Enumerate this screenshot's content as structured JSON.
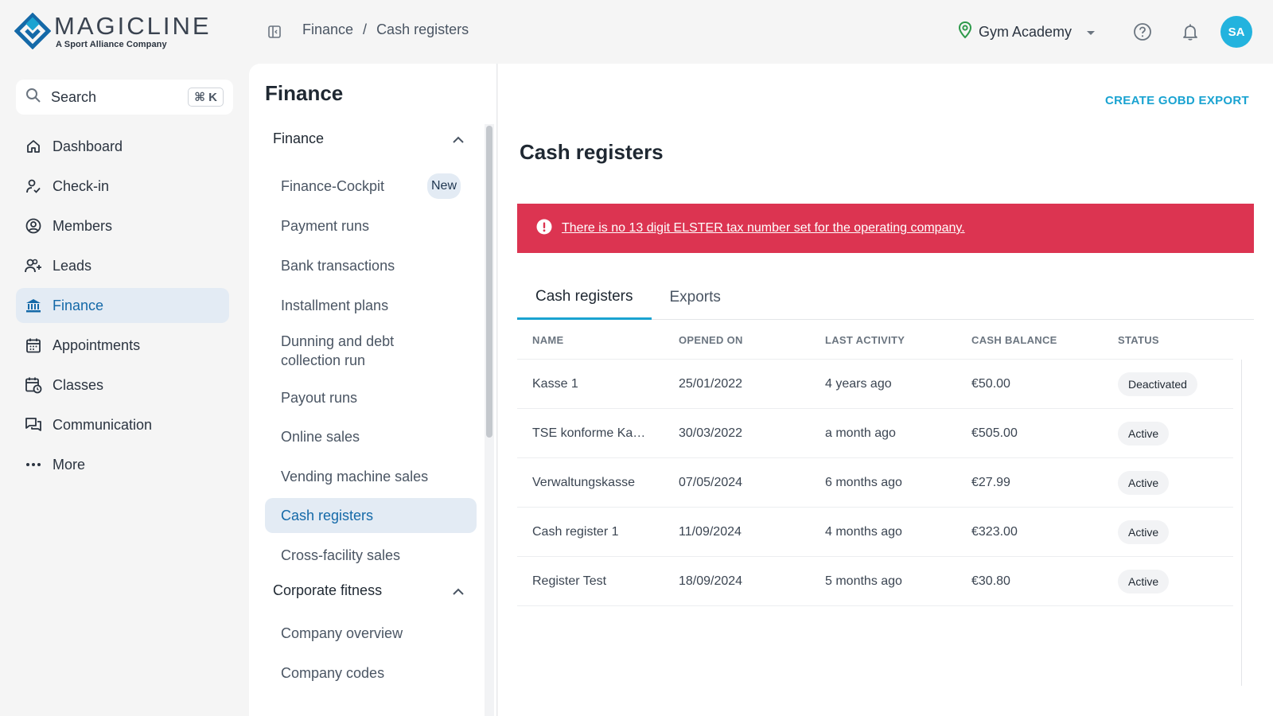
{
  "brand": {
    "name": "MAGICLINE",
    "tagline": "A Sport Alliance Company",
    "colors": {
      "primary": "#1469a8",
      "accent": "#1aa3d1",
      "alert": "#dc3451",
      "avatar": "#23b3de"
    }
  },
  "header": {
    "breadcrumb": [
      "Finance",
      "Cash registers"
    ],
    "breadcrumb_sep": "/",
    "location": "Gym Academy",
    "avatar_initials": "SA"
  },
  "search": {
    "label": "Search",
    "shortcut": "⌘ K"
  },
  "nav": {
    "items": [
      {
        "label": "Dashboard",
        "icon": "home-icon"
      },
      {
        "label": "Check-in",
        "icon": "check-in-icon"
      },
      {
        "label": "Members",
        "icon": "members-icon"
      },
      {
        "label": "Leads",
        "icon": "leads-icon"
      },
      {
        "label": "Finance",
        "icon": "bank-icon",
        "active": true
      },
      {
        "label": "Appointments",
        "icon": "calendar-icon"
      },
      {
        "label": "Classes",
        "icon": "classes-icon"
      },
      {
        "label": "Communication",
        "icon": "chat-icon"
      },
      {
        "label": "More",
        "icon": "more-icon"
      }
    ]
  },
  "subnav": {
    "title": "Finance",
    "group1": "Finance",
    "items": [
      {
        "label": "Finance-Cockpit",
        "badge": "New"
      },
      {
        "label": "Payment runs"
      },
      {
        "label": "Bank transactions"
      },
      {
        "label": "Installment plans"
      },
      {
        "label": "Dunning and debt collection run"
      },
      {
        "label": "Payout runs"
      },
      {
        "label": "Online sales"
      },
      {
        "label": "Vending machine sales"
      },
      {
        "label": "Cash registers",
        "active": true
      },
      {
        "label": "Cross-facility sales"
      }
    ],
    "group2": "Corporate fitness",
    "items2": [
      {
        "label": "Company overview"
      },
      {
        "label": "Company codes"
      }
    ]
  },
  "main": {
    "action": "CREATE GOBD EXPORT",
    "title": "Cash registers",
    "alert": "There is no 13 digit ELSTER tax number set for the operating company.",
    "tabs": [
      "Cash registers",
      "Exports"
    ],
    "columns": [
      "NAME",
      "OPENED ON",
      "LAST ACTIVITY",
      "CASH BALANCE",
      "STATUS"
    ],
    "rows": [
      {
        "name": "Kasse 1",
        "opened": "25/01/2022",
        "activity": "4 years ago",
        "balance": "€50.00",
        "status": "Deactivated"
      },
      {
        "name": "TSE konforme Ka…",
        "opened": "30/03/2022",
        "activity": "a month ago",
        "balance": "€505.00",
        "status": "Active"
      },
      {
        "name": "Verwaltungskasse",
        "opened": "07/05/2024",
        "activity": "6 months ago",
        "balance": "€27.99",
        "status": "Active"
      },
      {
        "name": "Cash register 1",
        "opened": "11/09/2024",
        "activity": "4 months ago",
        "balance": "€323.00",
        "status": "Active"
      },
      {
        "name": "Register Test",
        "opened": "18/09/2024",
        "activity": "5 months ago",
        "balance": "€30.80",
        "status": "Active"
      }
    ]
  }
}
